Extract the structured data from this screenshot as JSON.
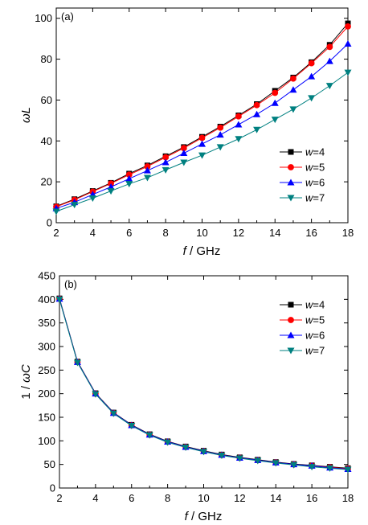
{
  "chart_data": [
    {
      "type": "line",
      "panel_label": "(a)",
      "xlabel_var": "f",
      "xlabel_unit": " / GHz",
      "ylabel": "ωL",
      "xlim": [
        2,
        18
      ],
      "ylim": [
        0,
        105
      ],
      "xticks": [
        2,
        4,
        6,
        8,
        10,
        12,
        14,
        16,
        18
      ],
      "yticks": [
        0,
        20,
        40,
        60,
        80,
        100
      ],
      "legend_position": "right",
      "x": [
        2,
        3,
        4,
        5,
        6,
        7,
        8,
        9,
        10,
        11,
        12,
        13,
        14,
        15,
        16,
        17,
        18
      ],
      "series": [
        {
          "name": "w=4",
          "var": "w",
          "val": "=4",
          "marker": "square",
          "color": "#000000",
          "values": [
            8.0,
            11.5,
            15.5,
            19.5,
            24.0,
            28.0,
            32.5,
            37.0,
            42.0,
            47.0,
            52.5,
            58.0,
            64.5,
            71.0,
            78.5,
            87.0,
            97.5
          ]
        },
        {
          "name": "w=5",
          "var": "w",
          "val": "=5",
          "marker": "circle",
          "color": "#ff0000",
          "values": [
            7.8,
            11.2,
            15.2,
            19.2,
            23.5,
            27.5,
            32.0,
            36.5,
            41.5,
            46.5,
            52.0,
            57.5,
            63.5,
            70.5,
            78.0,
            86.0,
            96.0
          ]
        },
        {
          "name": "w=6",
          "var": "w",
          "val": "=6",
          "marker": "triangle-up",
          "color": "#0000ff",
          "values": [
            7.0,
            10.0,
            13.8,
            17.5,
            21.5,
            25.5,
            29.5,
            34.0,
            38.5,
            43.0,
            48.0,
            53.0,
            58.5,
            65.0,
            71.5,
            79.0,
            87.5
          ]
        },
        {
          "name": "w=7",
          "var": "w",
          "val": "=7",
          "marker": "triangle-down",
          "color": "#008080",
          "values": [
            5.5,
            8.8,
            12.0,
            15.5,
            19.0,
            22.0,
            25.8,
            29.5,
            33.0,
            37.0,
            41.0,
            45.5,
            50.5,
            55.5,
            61.0,
            67.0,
            73.5
          ]
        }
      ]
    },
    {
      "type": "line",
      "panel_label": "(b)",
      "xlabel_var": "f",
      "xlabel_unit": " / GHz",
      "ylabel_pre": "1 / ",
      "ylabel_var": "ωC",
      "xlim": [
        2,
        18
      ],
      "ylim": [
        0,
        450
      ],
      "xticks": [
        2,
        4,
        6,
        8,
        10,
        12,
        14,
        16,
        18
      ],
      "yticks": [
        0,
        50,
        100,
        150,
        200,
        250,
        300,
        350,
        400,
        450
      ],
      "legend_position": "top-right",
      "x": [
        2,
        3,
        4,
        5,
        6,
        7,
        8,
        9,
        10,
        11,
        12,
        13,
        14,
        15,
        16,
        17,
        18
      ],
      "series": [
        {
          "name": "w=4",
          "var": "w",
          "val": "=4",
          "marker": "square",
          "color": "#000000",
          "values": [
            402,
            268,
            201,
            160,
            134,
            114,
            99,
            88,
            79,
            71,
            65,
            60,
            55,
            51,
            48,
            45,
            42
          ]
        },
        {
          "name": "w=5",
          "var": "w",
          "val": "=5",
          "marker": "circle",
          "color": "#ff0000",
          "values": [
            401,
            267,
            200,
            159,
            133,
            113,
            98,
            87,
            78,
            70,
            64,
            59,
            54,
            50,
            47,
            44,
            41
          ]
        },
        {
          "name": "w=6",
          "var": "w",
          "val": "=6",
          "marker": "triangle-up",
          "color": "#0000ff",
          "values": [
            401,
            267,
            200,
            159,
            133,
            113,
            98,
            87,
            78,
            70,
            64,
            59,
            54,
            50,
            47,
            43,
            40
          ]
        },
        {
          "name": "w=7",
          "var": "w",
          "val": "=7",
          "marker": "triangle-down",
          "color": "#008080",
          "values": [
            400,
            266,
            199,
            158,
            132,
            112,
            97,
            86,
            77,
            69,
            63,
            58,
            53,
            49,
            45,
            42,
            39
          ]
        }
      ]
    }
  ]
}
